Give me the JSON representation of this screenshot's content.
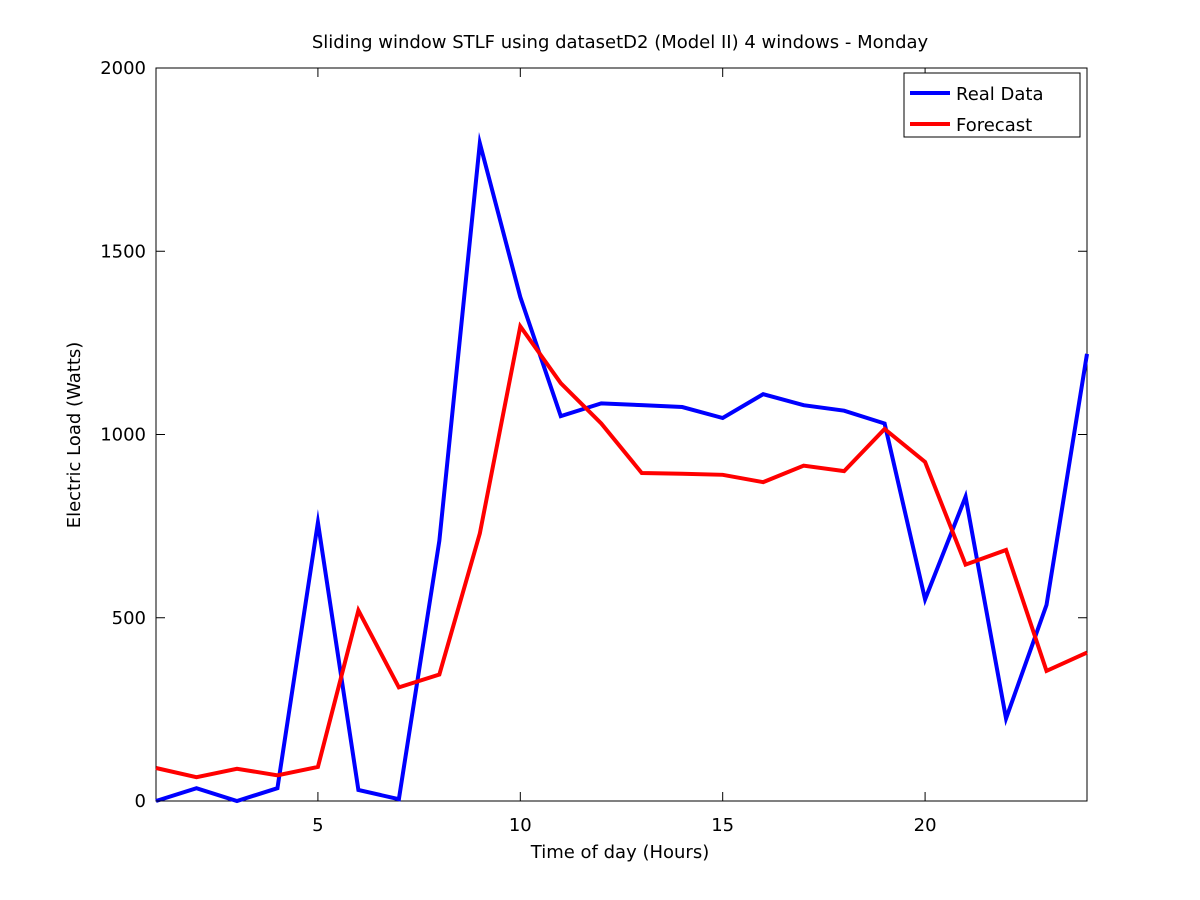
{
  "chart_data": {
    "type": "line",
    "title": "Sliding window STLF using datasetD2 (Model II) 4 windows - Monday",
    "xlabel": "Time of day (Hours)",
    "ylabel": "Electric Load (Watts)",
    "xlim": [
      1,
      24
    ],
    "ylim": [
      0,
      2000
    ],
    "xticks": [
      5,
      10,
      15,
      20
    ],
    "yticks": [
      0,
      500,
      1000,
      1500,
      2000
    ],
    "x": [
      1,
      2,
      3,
      4,
      5,
      6,
      7,
      8,
      9,
      10,
      11,
      12,
      13,
      14,
      15,
      16,
      17,
      18,
      19,
      20,
      21,
      22,
      23,
      24
    ],
    "series": [
      {
        "name": "Real Data",
        "color": "#0000ff",
        "values": [
          0,
          35,
          0,
          35,
          760,
          30,
          5,
          710,
          1795,
          1375,
          1050,
          1085,
          1080,
          1075,
          1045,
          1110,
          1080,
          1065,
          1030,
          550,
          830,
          225,
          535,
          1220
        ]
      },
      {
        "name": "Forecast",
        "color": "#ff0000",
        "values": [
          90,
          65,
          88,
          70,
          93,
          520,
          310,
          345,
          730,
          1295,
          1140,
          1030,
          895,
          893,
          890,
          870,
          915,
          900,
          1015,
          925,
          645,
          685,
          355,
          405
        ]
      }
    ],
    "grid": false,
    "legend_position": "top-right"
  }
}
